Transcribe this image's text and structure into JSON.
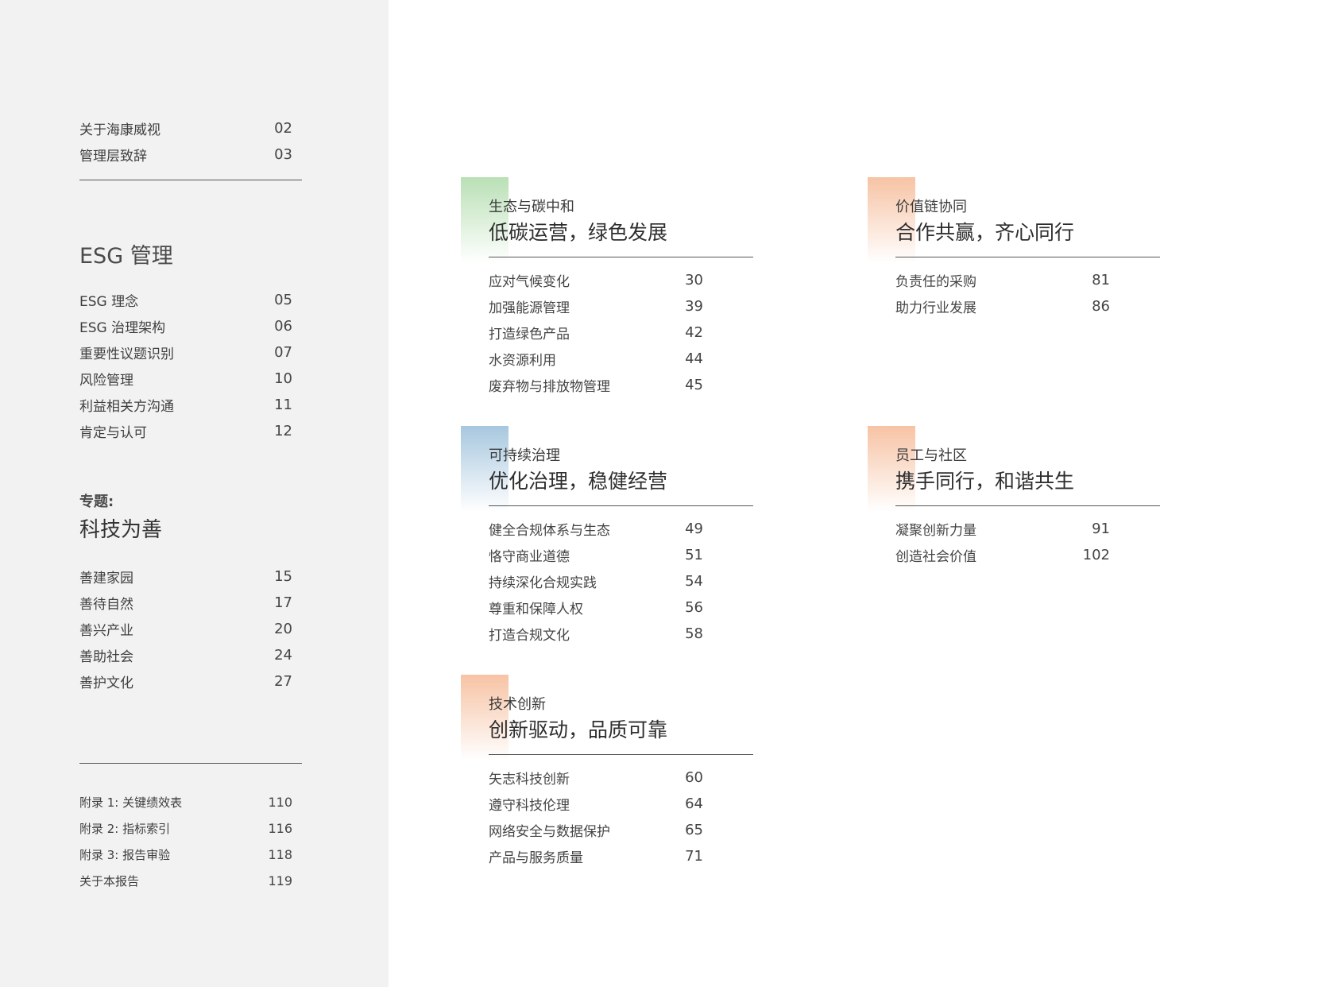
{
  "sidebar": {
    "intro": [
      {
        "label": "关于海康威视",
        "page": "02"
      },
      {
        "label": "管理层致辞",
        "page": "03"
      }
    ],
    "esg_heading": "ESG 管理",
    "esg_items": [
      {
        "label": "ESG 理念",
        "page": "05"
      },
      {
        "label": "ESG 治理架构",
        "page": "06"
      },
      {
        "label": "重要性议题识别",
        "page": "07"
      },
      {
        "label": "风险管理",
        "page": "10"
      },
      {
        "label": "利益相关方沟通",
        "page": "11"
      },
      {
        "label": "肯定与认可",
        "page": "12"
      }
    ],
    "special_label": "专题:",
    "special_title": "科技为善",
    "special_items": [
      {
        "label": "善建家园",
        "page": "15"
      },
      {
        "label": "善待自然",
        "page": "17"
      },
      {
        "label": "善兴产业",
        "page": "20"
      },
      {
        "label": "善助社会",
        "page": "24"
      },
      {
        "label": "善护文化",
        "page": "27"
      }
    ],
    "appendix_items": [
      {
        "label": "附录 1: 关键绩效表",
        "page": "110"
      },
      {
        "label": "附录 2: 指标索引",
        "page": "116"
      },
      {
        "label": "附录 3: 报告审验",
        "page": "118"
      },
      {
        "label": "关于本报告",
        "page": "119"
      }
    ]
  },
  "sections": {
    "eco": {
      "accent_color": "#b9e0b5",
      "subtitle": "生态与碳中和",
      "title": "低碳运营，绿色发展",
      "items": [
        {
          "label": "应对气候变化",
          "page": "30"
        },
        {
          "label": "加强能源管理",
          "page": "39"
        },
        {
          "label": "打造绿色产品",
          "page": "42"
        },
        {
          "label": "水资源利用",
          "page": "44"
        },
        {
          "label": "废弃物与排放物管理",
          "page": "45"
        }
      ]
    },
    "value": {
      "accent_color": "#f7c3a4",
      "subtitle": "价值链协同",
      "title": "合作共赢，齐心同行",
      "items": [
        {
          "label": "负责任的采购",
          "page": "81"
        },
        {
          "label": "助力行业发展",
          "page": "86"
        }
      ]
    },
    "governance": {
      "accent_color": "#a7c7df",
      "subtitle": "可持续治理",
      "title": "优化治理，稳健经营",
      "items": [
        {
          "label": "健全合规体系与生态",
          "page": "49"
        },
        {
          "label": "恪守商业道德",
          "page": "51"
        },
        {
          "label": "持续深化合规实践",
          "page": "54"
        },
        {
          "label": "尊重和保障人权",
          "page": "56"
        },
        {
          "label": "打造合规文化",
          "page": "58"
        }
      ]
    },
    "employee": {
      "accent_color": "#f7c3a4",
      "subtitle": "员工与社区",
      "title": "携手同行，和谐共生",
      "items": [
        {
          "label": "凝聚创新力量",
          "page": "91"
        },
        {
          "label": "创造社会价值",
          "page": "102"
        }
      ]
    },
    "tech": {
      "accent_color": "#f7c3a4",
      "subtitle": "技术创新",
      "title": "创新驱动，品质可靠",
      "items": [
        {
          "label": "矢志科技创新",
          "page": "60"
        },
        {
          "label": "遵守科技伦理",
          "page": "64"
        },
        {
          "label": "网络安全与数据保护",
          "page": "65"
        },
        {
          "label": "产品与服务质量",
          "page": "71"
        }
      ]
    }
  }
}
